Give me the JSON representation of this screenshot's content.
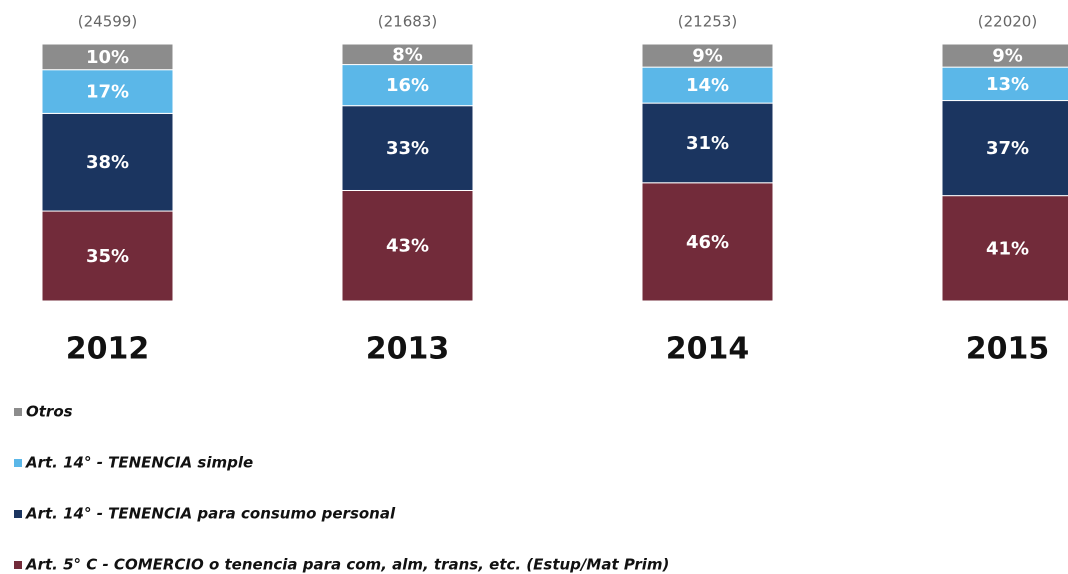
{
  "chart_data": {
    "type": "stacked_bar",
    "categories": [
      "2012",
      "2013",
      "2014",
      "2015"
    ],
    "annotations": [
      "(24599)",
      "(21683)",
      "(21253)",
      "(22020)"
    ],
    "ylim": [
      0,
      100
    ],
    "series": [
      {
        "name": "Otros",
        "color": "#8c8c8c",
        "values": [
          10,
          8,
          9,
          9
        ],
        "value_labels": [
          "10%",
          "8%",
          "9%",
          "9%"
        ]
      },
      {
        "name": "Art. 14° - TENENCIA simple",
        "color": "#5bb7e8",
        "values": [
          17,
          16,
          14,
          13
        ],
        "value_labels": [
          "17%",
          "16%",
          "14%",
          "13%"
        ]
      },
      {
        "name": "Art. 14° - TENENCIA para consumo personal",
        "color": "#1b3560",
        "values": [
          38,
          33,
          31,
          37
        ],
        "value_labels": [
          "38%",
          "33%",
          "31%",
          "37%"
        ]
      },
      {
        "name": "Art. 5° C - COMERCIO o tenencia para com, alm, trans, etc. (Estup/Mat Prim)",
        "color": "#722b3a",
        "values": [
          35,
          43,
          46,
          41
        ],
        "value_labels": [
          "35%",
          "43%",
          "46%",
          "41%"
        ]
      }
    ]
  }
}
